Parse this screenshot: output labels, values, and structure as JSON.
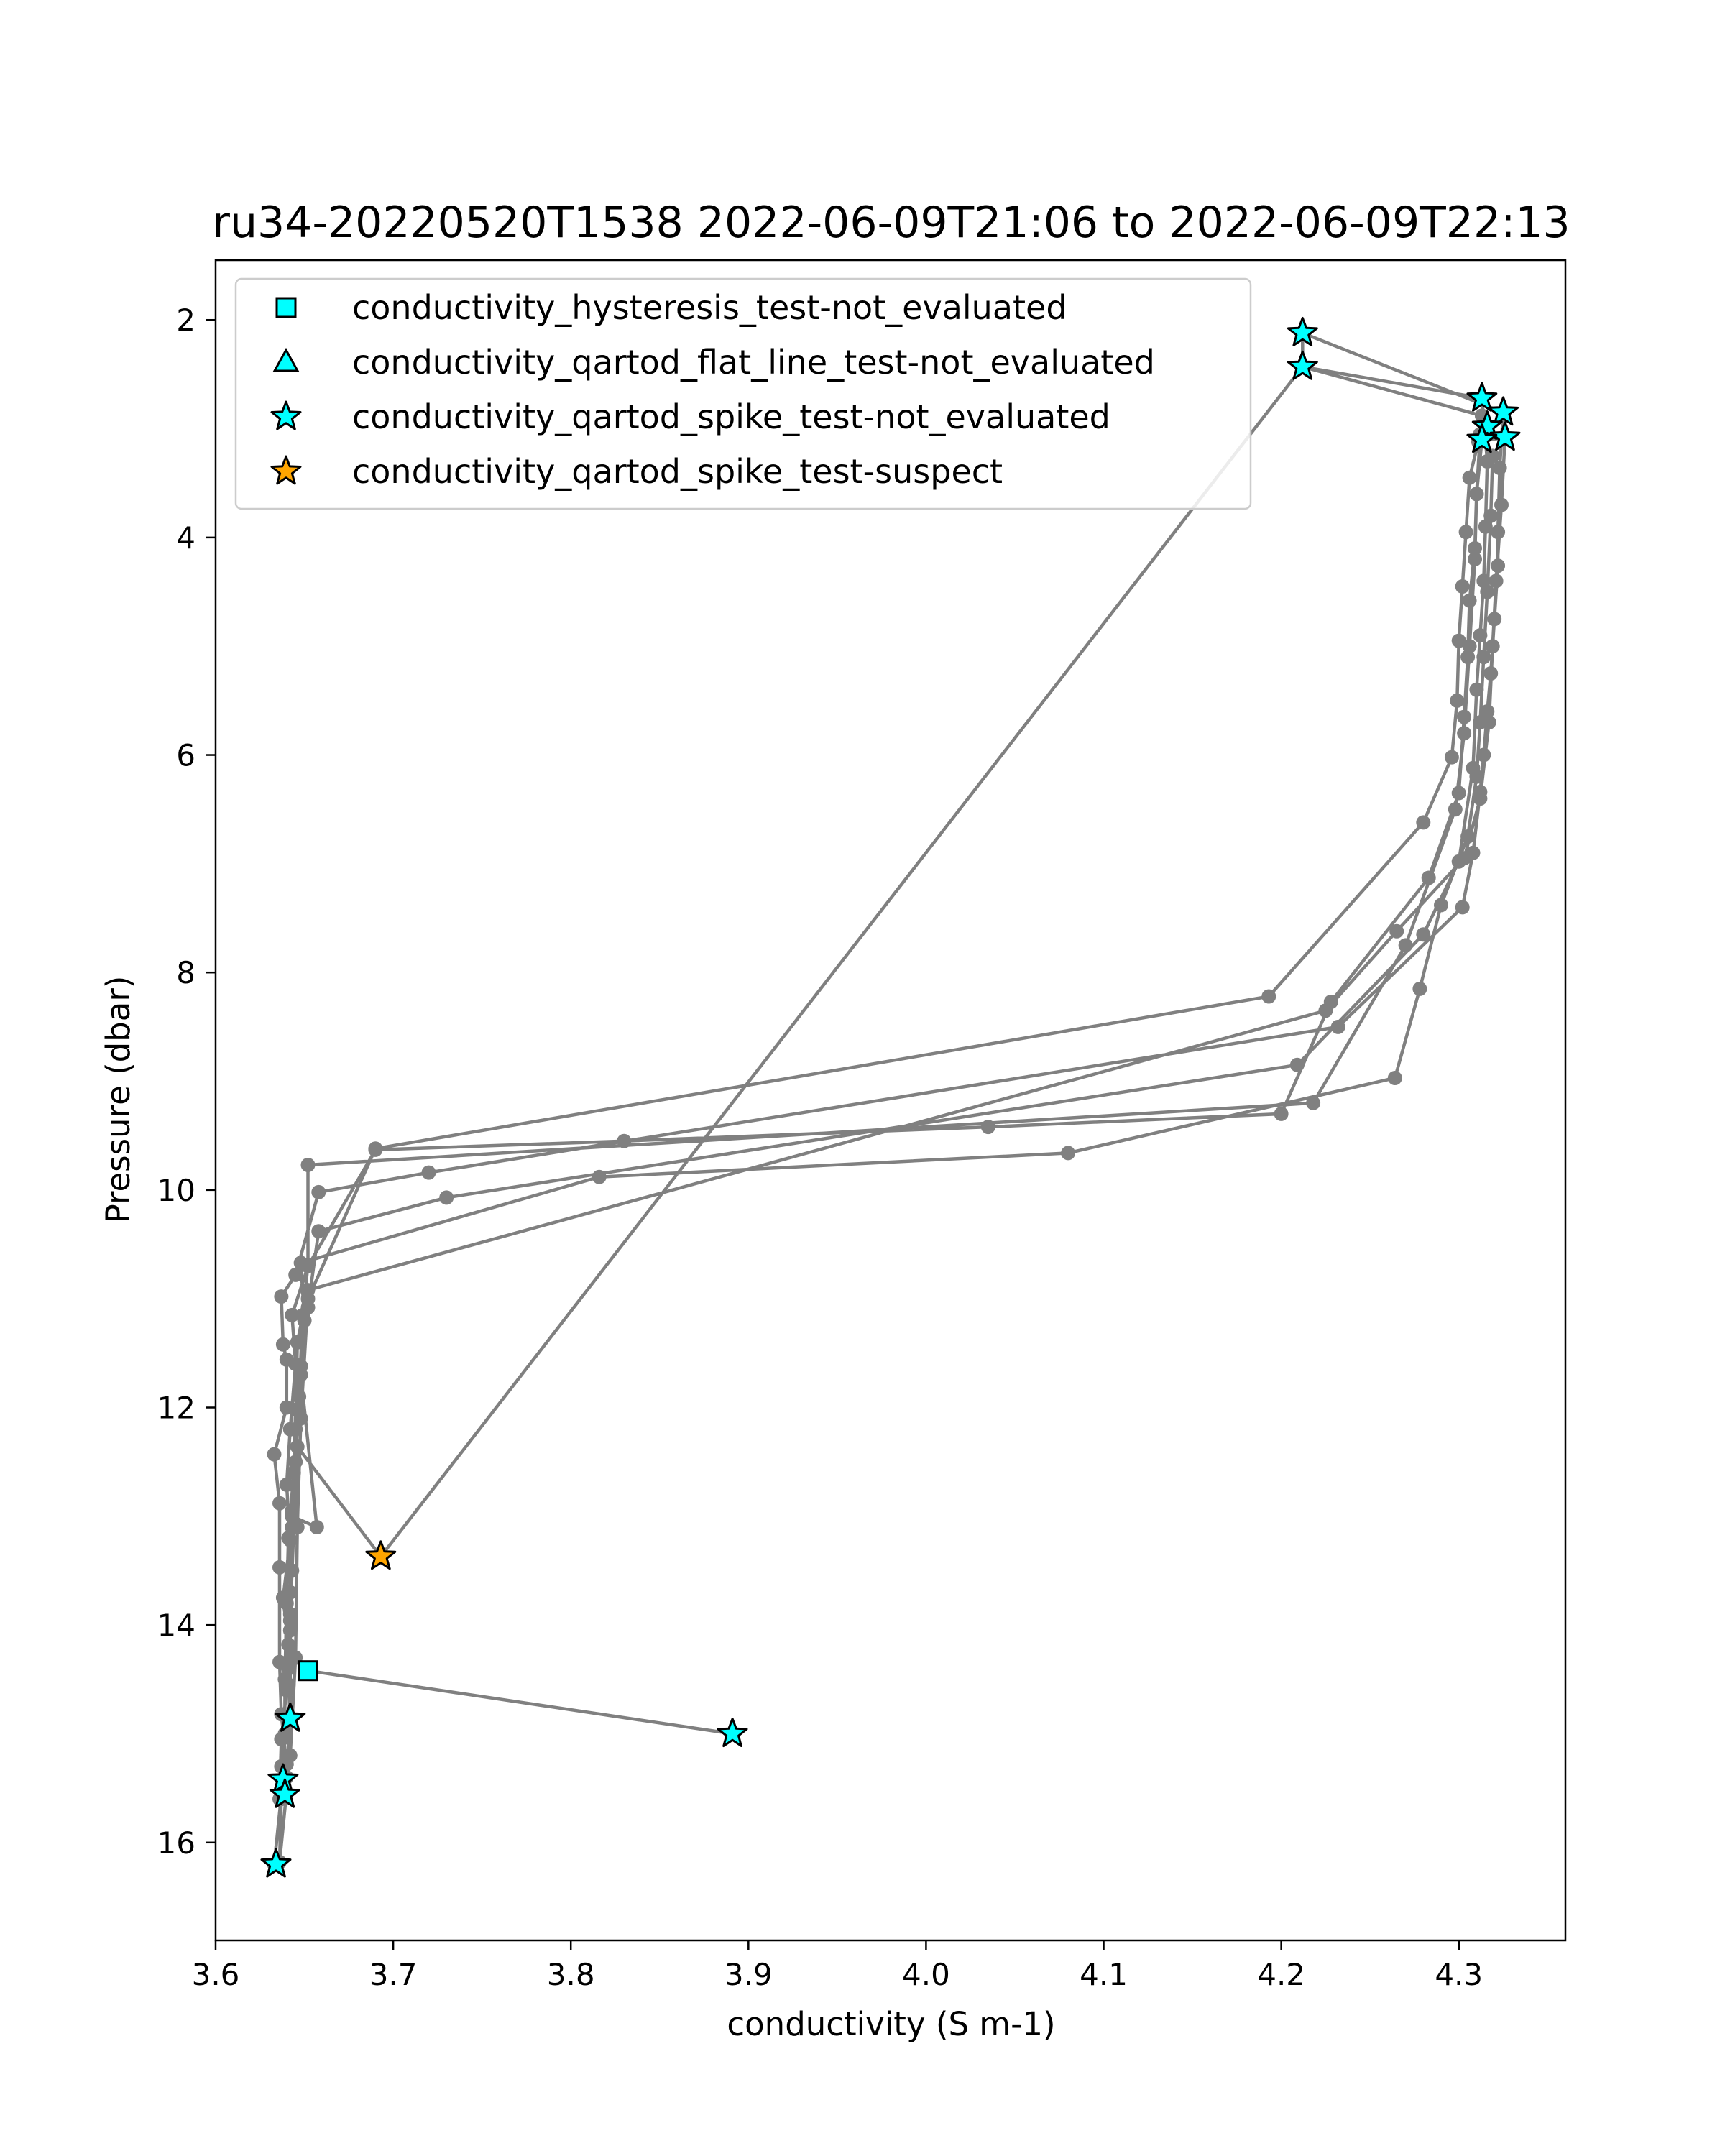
{
  "chart_data": {
    "type": "scatter",
    "title": "ru34-20220520T1538 2022-06-09T21:06 to 2022-06-09T22:13",
    "xlabel": "conductivity (S m-1)",
    "ylabel": "Pressure (dbar)",
    "xlim": [
      3.6,
      4.36
    ],
    "ylim": [
      16.9,
      1.45
    ],
    "y_inverted": true,
    "grid": false,
    "legend_position": "top-left",
    "x_ticks": [
      3.6,
      3.7,
      3.8,
      3.9,
      4.0,
      4.1,
      4.2,
      4.3
    ],
    "x_tick_labels": [
      "3.6",
      "3.7",
      "3.8",
      "3.9",
      "4.0",
      "4.1",
      "4.2",
      "4.3"
    ],
    "y_ticks": [
      2,
      4,
      6,
      8,
      10,
      12,
      14,
      16
    ],
    "y_tick_labels": [
      "2",
      "4",
      "6",
      "8",
      "10",
      "12",
      "14",
      "16"
    ],
    "colors": {
      "profile_line": "#808080",
      "not_evaluated": "#00ffff",
      "suspect": "#ffa500",
      "marker_edge": "#000000"
    },
    "profile_line": {
      "points": [
        [
          3.891,
          15.0
        ],
        [
          3.652,
          14.42
        ],
        [
          3.641,
          14.18
        ],
        [
          3.638,
          13.75
        ],
        [
          3.642,
          13.22
        ],
        [
          3.64,
          12.71
        ],
        [
          3.642,
          12.2
        ],
        [
          3.645,
          11.6
        ],
        [
          3.643,
          11.15
        ],
        [
          3.652,
          10.7
        ],
        [
          3.69,
          9.63
        ],
        [
          3.83,
          9.55
        ],
        [
          4.035,
          9.42
        ],
        [
          4.2,
          9.3
        ],
        [
          4.228,
          8.27
        ],
        [
          4.283,
          7.13
        ],
        [
          4.3,
          6.35
        ],
        [
          4.303,
          5.65
        ],
        [
          4.305,
          5.1
        ],
        [
          4.306,
          4.58
        ],
        [
          4.309,
          4.1
        ],
        [
          4.31,
          3.6
        ],
        [
          4.313,
          3.1
        ],
        [
          4.313,
          2.88
        ],
        [
          4.212,
          2.43
        ],
        [
          4.212,
          2.12
        ],
        [
          4.325,
          2.85
        ],
        [
          4.323,
          3.36
        ],
        [
          4.322,
          3.95
        ],
        [
          4.322,
          4.26
        ],
        [
          4.32,
          4.75
        ],
        [
          4.318,
          5.25
        ],
        [
          4.316,
          5.6
        ],
        [
          4.314,
          6.0
        ],
        [
          4.312,
          6.34
        ],
        [
          4.308,
          6.9
        ],
        [
          4.302,
          7.4
        ],
        [
          4.232,
          8.5
        ],
        [
          3.72,
          9.84
        ],
        [
          3.658,
          10.02
        ],
        [
          3.645,
          10.78
        ],
        [
          3.637,
          10.98
        ],
        [
          3.638,
          11.42
        ],
        [
          3.64,
          11.56
        ],
        [
          3.64,
          12.0
        ],
        [
          3.633,
          12.43
        ],
        [
          3.636,
          12.88
        ],
        [
          3.636,
          13.47
        ],
        [
          3.636,
          14.34
        ],
        [
          3.637,
          14.82
        ],
        [
          3.64,
          15.28
        ],
        [
          3.637,
          15.57
        ],
        [
          3.633,
          16.2
        ],
        [
          3.637,
          15.6
        ],
        [
          3.639,
          15.52
        ],
        [
          3.638,
          15.04
        ],
        [
          3.642,
          14.86
        ],
        [
          3.642,
          13.96
        ],
        [
          3.643,
          13.5
        ],
        [
          3.646,
          12.36
        ],
        [
          3.693,
          13.37
        ],
        [
          4.212,
          2.43
        ],
        [
          4.313,
          2.72
        ],
        [
          4.316,
          3.3
        ],
        [
          4.315,
          3.9
        ],
        [
          4.314,
          4.4
        ],
        [
          4.312,
          4.9
        ],
        [
          4.31,
          5.4
        ],
        [
          4.308,
          6.12
        ],
        [
          4.3,
          6.98
        ],
        [
          4.28,
          7.65
        ],
        [
          4.209,
          8.85
        ],
        [
          3.73,
          10.07
        ],
        [
          3.658,
          10.38
        ],
        [
          3.652,
          11.08
        ],
        [
          3.648,
          11.62
        ],
        [
          3.645,
          12.02
        ],
        [
          3.644,
          12.6
        ],
        [
          3.641,
          13.2
        ],
        [
          3.64,
          13.8
        ],
        [
          3.639,
          14.5
        ],
        [
          3.639,
          15.0
        ],
        [
          3.637,
          15.3
        ],
        [
          3.636,
          15.6
        ],
        [
          3.637,
          15.05
        ],
        [
          3.64,
          14.6
        ],
        [
          3.642,
          14.05
        ],
        [
          3.643,
          13.0
        ],
        [
          3.657,
          13.1
        ],
        [
          3.648,
          11.7
        ],
        [
          3.65,
          11.2
        ],
        [
          3.648,
          10.67
        ],
        [
          3.816,
          9.88
        ],
        [
          4.08,
          9.66
        ],
        [
          4.264,
          8.97
        ],
        [
          4.278,
          8.15
        ],
        [
          4.29,
          7.38
        ],
        [
          4.305,
          6.75
        ],
        [
          4.31,
          6.2
        ],
        [
          4.312,
          5.7
        ],
        [
          4.314,
          5.1
        ],
        [
          4.316,
          4.5
        ],
        [
          4.318,
          3.8
        ],
        [
          4.319,
          3.25
        ],
        [
          4.312,
          3.05
        ],
        [
          4.31,
          3.6
        ],
        [
          4.309,
          4.2
        ],
        [
          4.306,
          5.0
        ],
        [
          4.303,
          5.8
        ],
        [
          4.298,
          6.5
        ],
        [
          4.27,
          7.75
        ],
        [
          4.218,
          9.2
        ],
        [
          3.652,
          9.77
        ],
        [
          3.652,
          10.69
        ],
        [
          3.649,
          11.15
        ],
        [
          3.647,
          11.9
        ],
        [
          3.645,
          12.5
        ],
        [
          3.643,
          13.1
        ],
        [
          3.642,
          13.9
        ],
        [
          3.641,
          14.4
        ],
        [
          3.642,
          14.88
        ],
        [
          3.64,
          15.4
        ],
        [
          3.637,
          15.58
        ],
        [
          3.636,
          16.18
        ],
        [
          3.642,
          15.2
        ],
        [
          3.645,
          14.3
        ],
        [
          3.646,
          13.1
        ],
        [
          3.648,
          12.1
        ],
        [
          3.652,
          11.0
        ],
        [
          3.69,
          9.62
        ],
        [
          4.193,
          8.22
        ],
        [
          4.28,
          6.62
        ],
        [
          4.296,
          6.02
        ],
        [
          4.299,
          5.5
        ],
        [
          4.3,
          4.95
        ],
        [
          4.302,
          4.45
        ],
        [
          4.304,
          3.95
        ],
        [
          4.306,
          3.45
        ],
        [
          4.311,
          3.12
        ],
        [
          4.326,
          3.08
        ],
        [
          4.324,
          3.7
        ],
        [
          4.321,
          4.4
        ],
        [
          4.319,
          5.0
        ],
        [
          4.317,
          5.7
        ],
        [
          4.312,
          6.4
        ],
        [
          4.303,
          6.95
        ],
        [
          4.265,
          7.62
        ],
        [
          4.225,
          8.35
        ],
        [
          3.652,
          10.92
        ],
        [
          3.646,
          11.4
        ],
        [
          3.645,
          12.2
        ],
        [
          3.643,
          12.95
        ],
        [
          3.642,
          13.7
        ],
        [
          3.641,
          14.55
        ],
        [
          3.642,
          14.85
        ]
      ]
    },
    "series": [
      {
        "name": "conductivity_hysteresis_test-not_evaluated",
        "marker": "square",
        "color": "#00ffff",
        "points": [
          [
            3.652,
            14.42
          ]
        ]
      },
      {
        "name": "conductivity_qartod_flat_line_test-not_evaluated",
        "marker": "triangle",
        "color": "#00ffff",
        "points": []
      },
      {
        "name": "conductivity_qartod_spike_test-not_evaluated",
        "marker": "star",
        "color": "#00ffff",
        "points": [
          [
            4.212,
            2.12
          ],
          [
            4.212,
            2.43
          ],
          [
            4.313,
            2.72
          ],
          [
            4.325,
            2.85
          ],
          [
            4.316,
            2.98
          ],
          [
            4.326,
            3.08
          ],
          [
            4.313,
            3.1
          ],
          [
            3.891,
            15.0
          ],
          [
            3.642,
            14.86
          ],
          [
            3.638,
            15.42
          ],
          [
            3.639,
            15.56
          ],
          [
            3.634,
            16.2
          ]
        ]
      },
      {
        "name": "conductivity_qartod_spike_test-suspect",
        "marker": "star",
        "color": "#ffa500",
        "points": [
          [
            3.693,
            13.37
          ]
        ]
      }
    ]
  }
}
